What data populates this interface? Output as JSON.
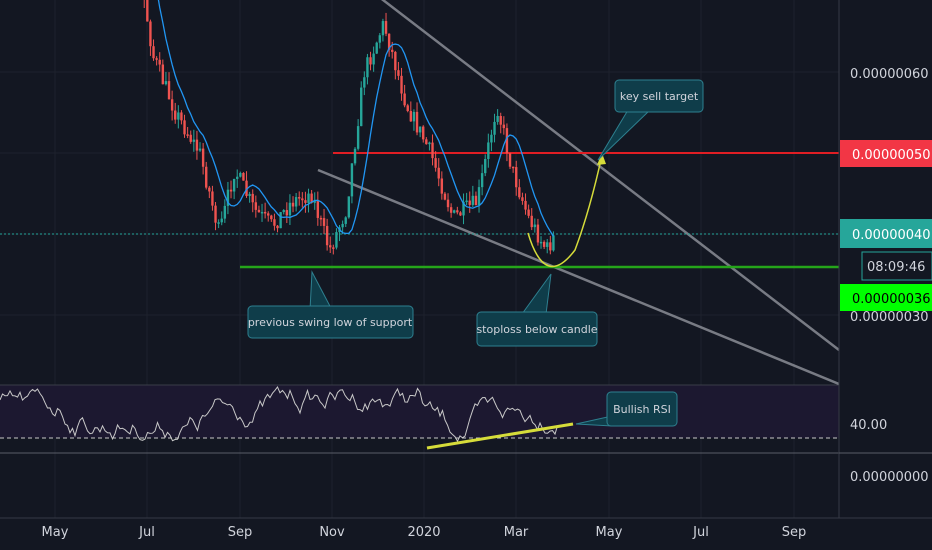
{
  "chart_data": {
    "type": "candlestick",
    "title": "",
    "x_axis": {
      "ticks": [
        "May",
        "Jul",
        "Sep",
        "Nov",
        "2020",
        "Mar",
        "May",
        "Jul",
        "Sep"
      ]
    },
    "y_axis": {
      "ticks": [
        "0.00000060",
        "0.00000050",
        "0.00000040",
        "0.00000030"
      ],
      "range": [
        3e-07,
        7e-07
      ]
    },
    "price_badges": {
      "target": {
        "text": "0.00000050",
        "color": "#f23645"
      },
      "current": {
        "text": "0.00000040",
        "color": "#26a69a"
      },
      "countdown": {
        "text": "08:09:46",
        "color": "#26a69a"
      },
      "support": {
        "text": "0.00000036",
        "color": "#00ff00"
      }
    },
    "levels": [
      {
        "name": "key-sell-target",
        "value": 5e-07,
        "color": "#e01e24"
      },
      {
        "name": "support",
        "value": 3.6e-07,
        "color": "#25a51a"
      },
      {
        "name": "last-price",
        "value": 4e-07,
        "color": "#26a69a"
      }
    ],
    "annotations": {
      "key_sell_target": "key sell target",
      "previous_swing_low": "previous swing low of support",
      "stoploss": "stoploss below candle",
      "bullish_rsi": "Bullish RSI"
    },
    "rsi": {
      "label": "40.00",
      "bottom_label": "0.00000000",
      "level": 40
    },
    "colors": {
      "up": "#26a69a",
      "down": "#ef5350",
      "ma": "#2196f3",
      "rsi_line": "#c8c8c8",
      "trend": "#8a8d96",
      "arc": "#d6dc3a"
    },
    "price_path": [
      [
        "2019-04-10",
        1.0
      ],
      [
        "2019-06-20",
        0.8
      ],
      [
        "2019-07-05",
        0.62
      ],
      [
        "2019-07-20",
        0.55
      ],
      [
        "2019-08-05",
        0.5
      ],
      [
        "2019-08-18",
        0.4
      ],
      [
        "2019-08-28",
        0.48
      ],
      [
        "2019-09-10",
        0.43
      ],
      [
        "2019-09-22",
        0.41
      ],
      [
        "2019-10-05",
        0.44
      ],
      [
        "2019-10-18",
        0.45
      ],
      [
        "2019-10-30",
        0.38
      ],
      [
        "2019-11-10",
        0.43
      ],
      [
        "2019-11-22",
        0.6
      ],
      [
        "2019-12-05",
        0.66
      ],
      [
        "2019-12-20",
        0.56
      ],
      [
        "2020-01-05",
        0.5
      ],
      [
        "2020-01-20",
        0.42
      ],
      [
        "2020-02-05",
        0.44
      ],
      [
        "2020-02-18",
        0.56
      ],
      [
        "2020-02-28",
        0.48
      ],
      [
        "2020-03-10",
        0.42
      ],
      [
        "2020-03-22",
        0.38
      ],
      [
        "2020-03-28",
        0.4
      ]
    ]
  }
}
